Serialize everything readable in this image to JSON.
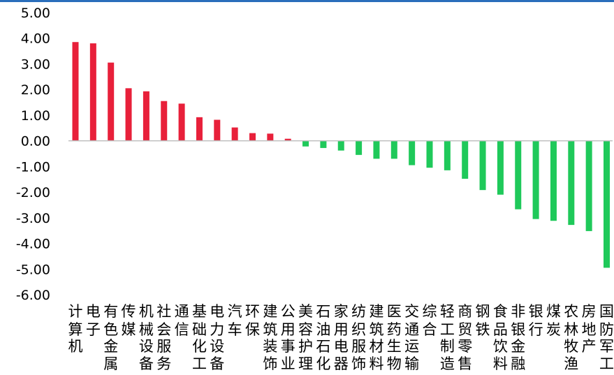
{
  "chart_data": {
    "type": "bar",
    "title": "",
    "xlabel": "",
    "ylabel": "",
    "ylim": [
      -6,
      5
    ],
    "yticks": [
      "5.00",
      "4.00",
      "3.00",
      "2.00",
      "1.00",
      "0.00",
      "-1.00",
      "-2.00",
      "-3.00",
      "-4.00",
      "-5.00",
      "-6.00"
    ],
    "grid": false,
    "legend": "none",
    "colors": {
      "positive": "#e8203a",
      "negative": "#1fc95a",
      "axis": "#bfbfbf"
    },
    "categories": [
      "计算机",
      "电子",
      "有色金属",
      "传媒",
      "机械设备",
      "社会服务",
      "通信",
      "基础化工",
      "电力设备",
      "汽车",
      "环保",
      "建筑装饰",
      "公用事业",
      "美容护理",
      "石油石化",
      "家用电器",
      "纺织服饰",
      "建筑材料",
      "医药生物",
      "交通运输",
      "综合",
      "轻工制造",
      "商贸零售",
      "钢铁",
      "食品饮料",
      "非银金融",
      "银行",
      "煤炭",
      "农林牧渔",
      "房地产",
      "国防军工"
    ],
    "values": [
      3.85,
      3.8,
      3.05,
      2.05,
      1.93,
      1.55,
      1.45,
      0.92,
      0.82,
      0.52,
      0.3,
      0.28,
      0.08,
      -0.22,
      -0.28,
      -0.38,
      -0.55,
      -0.7,
      -0.7,
      -0.95,
      -1.05,
      -1.15,
      -1.48,
      -1.92,
      -2.1,
      -2.67,
      -3.05,
      -3.12,
      -3.28,
      -3.52,
      -4.95
    ]
  }
}
